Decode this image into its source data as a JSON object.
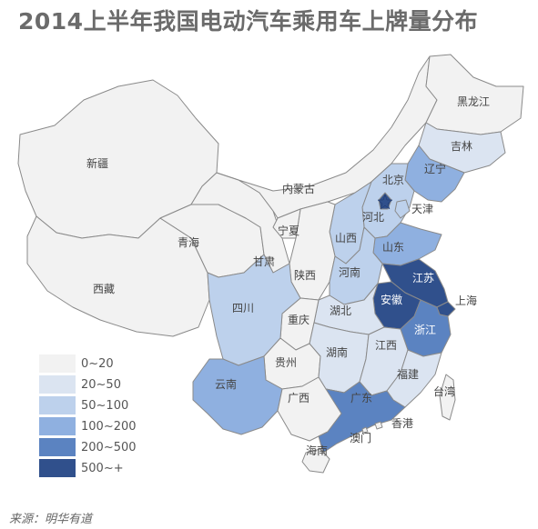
{
  "title": "2014上半年我国电动汽车乘用车上牌量分布",
  "source": "来源：明华有道",
  "colors": {
    "c0": "#f2f2f2",
    "c1": "#dbe4f1",
    "c2": "#bdd1ec",
    "c3": "#8fb0e0",
    "c4": "#5b83c1",
    "c5": "#30508c"
  },
  "legend": [
    {
      "label": "0~20",
      "color": "#f2f2f2"
    },
    {
      "label": "20~50",
      "color": "#dbe4f1"
    },
    {
      "label": "50~100",
      "color": "#bdd1ec"
    },
    {
      "label": "100~200",
      "color": "#8fb0e0"
    },
    {
      "label": "200~500",
      "color": "#5b83c1"
    },
    {
      "label": "500~+",
      "color": "#30508c"
    }
  ],
  "regions": {
    "xinjiang": {
      "name": "新疆",
      "bin": "0~20"
    },
    "xizang": {
      "name": "西藏",
      "bin": "0~20"
    },
    "qinghai": {
      "name": "青海",
      "bin": "0~20"
    },
    "gansu": {
      "name": "甘肃",
      "bin": "0~20"
    },
    "neimenggu": {
      "name": "内蒙古",
      "bin": "0~20"
    },
    "heilongjiang": {
      "name": "黑龙江",
      "bin": "0~20"
    },
    "jilin": {
      "name": "吉林",
      "bin": "20~50"
    },
    "liaoning": {
      "name": "辽宁",
      "bin": "100~200"
    },
    "beijing": {
      "name": "北京",
      "bin": "500~+"
    },
    "tianjin": {
      "name": "天津",
      "bin": "50~100"
    },
    "hebei": {
      "name": "河北",
      "bin": "50~100"
    },
    "shanxi": {
      "name": "山西",
      "bin": "50~100"
    },
    "shaanxi": {
      "name": "陕西",
      "bin": "0~20"
    },
    "ningxia": {
      "name": "宁夏",
      "bin": "0~20"
    },
    "shandong": {
      "name": "山东",
      "bin": "100~200"
    },
    "henan": {
      "name": "河南",
      "bin": "50~100"
    },
    "jiangsu": {
      "name": "江苏",
      "bin": "500~+"
    },
    "anhui": {
      "name": "安徽",
      "bin": "500~+"
    },
    "shanghai": {
      "name": "上海",
      "bin": "500~+"
    },
    "zhejiang": {
      "name": "浙江",
      "bin": "200~500"
    },
    "hubei": {
      "name": "湖北",
      "bin": "20~50"
    },
    "chongqing": {
      "name": "重庆",
      "bin": "0~20"
    },
    "sichuan": {
      "name": "四川",
      "bin": "50~100"
    },
    "guizhou": {
      "name": "贵州",
      "bin": "0~20"
    },
    "yunnan": {
      "name": "云南",
      "bin": "100~200"
    },
    "hunan": {
      "name": "湖南",
      "bin": "20~50"
    },
    "jiangxi": {
      "name": "江西",
      "bin": "20~50"
    },
    "fujian": {
      "name": "福建",
      "bin": "20~50"
    },
    "guangxi": {
      "name": "广西",
      "bin": "0~20"
    },
    "guangdong": {
      "name": "广东",
      "bin": "200~500"
    },
    "hainan": {
      "name": "海南",
      "bin": "0~20"
    },
    "taiwan": {
      "name": "台湾",
      "bin": "0~20"
    },
    "xianggang": {
      "name": "香港",
      "bin": "0~20"
    },
    "aomen": {
      "name": "澳门",
      "bin": "0~20"
    }
  }
}
